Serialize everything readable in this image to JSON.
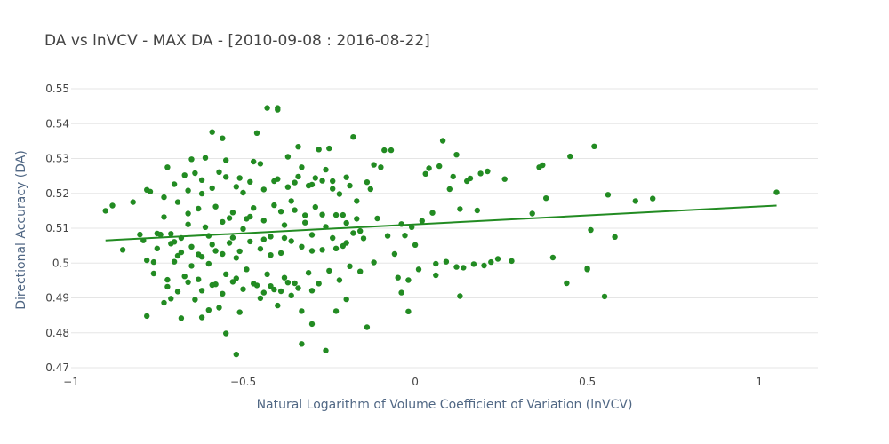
{
  "chart_data": {
    "type": "scatter",
    "title": "DA vs lnVCV - MAX DA - [2010-09-08 : 2016-08-22]",
    "xlabel": "Natural Logarithm of Volume Coefficient of Variation (lnVCV)",
    "ylabel": "Directional Accuracy (DA)",
    "xlim": [
      -1.0,
      1.17
    ],
    "ylim": [
      0.47,
      0.55
    ],
    "x_ticks": [
      {
        "value": -1,
        "label": "−1"
      },
      {
        "value": -0.5,
        "label": "−0.5"
      },
      {
        "value": 0,
        "label": "0"
      },
      {
        "value": 0.5,
        "label": "0.5"
      },
      {
        "value": 1,
        "label": "1"
      }
    ],
    "y_ticks": [
      {
        "value": 0.47,
        "label": "0.47"
      },
      {
        "value": 0.48,
        "label": "0.48"
      },
      {
        "value": 0.49,
        "label": "0.49"
      },
      {
        "value": 0.5,
        "label": "0.5"
      },
      {
        "value": 0.51,
        "label": "0.51"
      },
      {
        "value": 0.52,
        "label": "0.52"
      },
      {
        "value": 0.53,
        "label": "0.53"
      },
      {
        "value": 0.54,
        "label": "0.54"
      },
      {
        "value": 0.55,
        "label": "0.55"
      }
    ],
    "grid": "y",
    "colors": {
      "marker": "#228b22",
      "trend": "#228b22",
      "grid": "#e5e5e5",
      "zero_line": "#444444"
    },
    "trendline": {
      "x": [
        -0.9,
        1.05
      ],
      "y": [
        0.5065,
        0.5165
      ]
    },
    "points": [
      [
        -0.9,
        0.515
      ],
      [
        -0.88,
        0.5165
      ],
      [
        -0.85,
        0.5038
      ],
      [
        -0.82,
        0.5175
      ],
      [
        -0.8,
        0.5082
      ],
      [
        -0.79,
        0.5065
      ],
      [
        -0.78,
        0.521
      ],
      [
        -0.77,
        0.5205
      ],
      [
        -0.78,
        0.5008
      ],
      [
        -0.76,
        0.497
      ],
      [
        -0.75,
        0.5085
      ],
      [
        -0.74,
        0.5082
      ],
      [
        -0.73,
        0.5189
      ],
      [
        -0.72,
        0.5275
      ],
      [
        -0.71,
        0.5084
      ],
      [
        -0.7,
        0.5061
      ],
      [
        -0.69,
        0.5021
      ],
      [
        -0.68,
        0.5072
      ],
      [
        -0.67,
        0.5252
      ],
      [
        -0.66,
        0.5142
      ],
      [
        -0.65,
        0.5298
      ],
      [
        -0.64,
        0.5258
      ],
      [
        -0.63,
        0.5025
      ],
      [
        -0.62,
        0.5199
      ],
      [
        -0.61,
        0.5302
      ],
      [
        -0.6,
        0.5078
      ],
      [
        -0.59,
        0.5376
      ],
      [
        -0.58,
        0.5035
      ],
      [
        -0.57,
        0.5261
      ],
      [
        -0.56,
        0.5358
      ],
      [
        -0.55,
        0.5295
      ],
      [
        -0.54,
        0.5129
      ],
      [
        -0.53,
        0.5073
      ],
      [
        -0.52,
        0.5015
      ],
      [
        -0.51,
        0.5244
      ],
      [
        -0.5,
        0.5202
      ],
      [
        -0.49,
        0.5127
      ],
      [
        -0.48,
        0.5133
      ],
      [
        -0.47,
        0.5291
      ],
      [
        -0.46,
        0.5373
      ],
      [
        -0.45,
        0.5285
      ],
      [
        -0.44,
        0.5068
      ],
      [
        -0.43,
        0.5445
      ],
      [
        -0.42,
        0.5023
      ],
      [
        -0.41,
        0.5235
      ],
      [
        -0.4,
        0.5445
      ],
      [
        -0.4,
        0.544
      ],
      [
        -0.39,
        0.5148
      ],
      [
        -0.38,
        0.5072
      ],
      [
        -0.37,
        0.5305
      ],
      [
        -0.36,
        0.5178
      ],
      [
        -0.35,
        0.5231
      ],
      [
        -0.34,
        0.5334
      ],
      [
        -0.33,
        0.5275
      ],
      [
        -0.32,
        0.5137
      ],
      [
        -0.31,
        0.5222
      ],
      [
        -0.3,
        0.5035
      ],
      [
        -0.29,
        0.5244
      ],
      [
        -0.28,
        0.5326
      ],
      [
        -0.27,
        0.5139
      ],
      [
        -0.26,
        0.5268
      ],
      [
        -0.25,
        0.5329
      ],
      [
        -0.24,
        0.5235
      ],
      [
        -0.23,
        0.5042
      ],
      [
        -0.22,
        0.5198
      ],
      [
        -0.21,
        0.5138
      ],
      [
        -0.2,
        0.5058
      ],
      [
        -0.19,
        0.5222
      ],
      [
        -0.18,
        0.5362
      ],
      [
        -0.17,
        0.5178
      ],
      [
        -0.16,
        0.5092
      ],
      [
        -0.15,
        0.5071
      ],
      [
        -0.14,
        0.5232
      ],
      [
        -0.13,
        0.5212
      ],
      [
        -0.12,
        0.5282
      ],
      [
        -0.11,
        0.5128
      ],
      [
        -0.1,
        0.5275
      ],
      [
        -0.09,
        0.5324
      ],
      [
        -0.08,
        0.5078
      ],
      [
        -0.07,
        0.5324
      ],
      [
        -0.06,
        0.5026
      ],
      [
        -0.05,
        0.4958
      ],
      [
        -0.04,
        0.5112
      ],
      [
        -0.03,
        0.5079
      ],
      [
        -0.02,
        0.4951
      ],
      [
        -0.01,
        0.5103
      ],
      [
        0.0,
        0.5052
      ],
      [
        0.02,
        0.5121
      ],
      [
        0.03,
        0.5256
      ],
      [
        0.04,
        0.5272
      ],
      [
        0.05,
        0.5144
      ],
      [
        0.06,
        0.4998
      ],
      [
        0.07,
        0.5278
      ],
      [
        0.08,
        0.5351
      ],
      [
        0.1,
        0.5212
      ],
      [
        0.11,
        0.5248
      ],
      [
        0.12,
        0.5311
      ],
      [
        0.13,
        0.5155
      ],
      [
        0.14,
        0.4987
      ],
      [
        0.15,
        0.5235
      ],
      [
        0.16,
        0.5243
      ],
      [
        0.18,
        0.5151
      ],
      [
        0.19,
        0.5257
      ],
      [
        0.21,
        0.5263
      ],
      [
        0.22,
        0.5003
      ],
      [
        0.24,
        0.5012
      ],
      [
        0.26,
        0.5241
      ],
      [
        0.28,
        0.5006
      ],
      [
        0.34,
        0.5142
      ],
      [
        0.36,
        0.5275
      ],
      [
        0.37,
        0.5281
      ],
      [
        0.38,
        0.5186
      ],
      [
        0.4,
        0.5016
      ],
      [
        0.44,
        0.4942
      ],
      [
        0.45,
        0.5306
      ],
      [
        0.5,
        0.4985
      ],
      [
        0.51,
        0.5095
      ],
      [
        0.52,
        0.5335
      ],
      [
        0.56,
        0.5196
      ],
      [
        0.58,
        0.5075
      ],
      [
        0.64,
        0.5178
      ],
      [
        0.69,
        0.5185
      ],
      [
        1.05,
        0.5203
      ],
      [
        -0.78,
        0.4848
      ],
      [
        -0.73,
        0.4886
      ],
      [
        -0.71,
        0.4898
      ],
      [
        -0.68,
        0.4842
      ],
      [
        -0.64,
        0.4895
      ],
      [
        -0.62,
        0.4844
      ],
      [
        -0.6,
        0.4865
      ],
      [
        -0.57,
        0.4872
      ],
      [
        -0.55,
        0.4798
      ],
      [
        -0.52,
        0.4738
      ],
      [
        -0.51,
        0.4859
      ],
      [
        -0.45,
        0.4899
      ],
      [
        -0.4,
        0.4878
      ],
      [
        -0.36,
        0.4907
      ],
      [
        -0.33,
        0.4862
      ],
      [
        -0.33,
        0.4768
      ],
      [
        -0.3,
        0.4825
      ],
      [
        -0.26,
        0.4749
      ],
      [
        -0.23,
        0.4862
      ],
      [
        -0.2,
        0.4896
      ],
      [
        -0.14,
        0.4816
      ],
      [
        -0.04,
        0.4915
      ],
      [
        -0.02,
        0.4861
      ],
      [
        0.13,
        0.4905
      ],
      [
        0.55,
        0.4904
      ],
      [
        -0.76,
        0.5003
      ],
      [
        -0.72,
        0.4952
      ],
      [
        -0.7,
        0.5004
      ],
      [
        -0.67,
        0.4962
      ],
      [
        -0.65,
        0.4992
      ],
      [
        -0.63,
        0.4953
      ],
      [
        -0.6,
        0.4998
      ],
      [
        -0.58,
        0.4939
      ],
      [
        -0.55,
        0.4968
      ],
      [
        -0.52,
        0.4956
      ],
      [
        -0.49,
        0.4982
      ],
      [
        -0.46,
        0.4936
      ],
      [
        -0.43,
        0.4968
      ],
      [
        -0.41,
        0.4924
      ],
      [
        -0.38,
        0.4958
      ],
      [
        -0.35,
        0.4942
      ],
      [
        -0.31,
        0.4972
      ],
      [
        -0.28,
        0.4941
      ],
      [
        -0.25,
        0.4978
      ],
      [
        -0.22,
        0.4951
      ],
      [
        -0.19,
        0.4991
      ],
      [
        -0.16,
        0.4976
      ],
      [
        -0.12,
        0.5002
      ],
      [
        0.01,
        0.4982
      ],
      [
        0.06,
        0.4965
      ],
      [
        0.09,
        0.5004
      ],
      [
        0.12,
        0.4989
      ],
      [
        0.17,
        0.4997
      ],
      [
        0.2,
        0.4993
      ],
      [
        0.5,
        0.4982
      ],
      [
        -0.73,
        0.5132
      ],
      [
        -0.69,
        0.5175
      ],
      [
        -0.66,
        0.5111
      ],
      [
        -0.63,
        0.5156
      ],
      [
        -0.61,
        0.5103
      ],
      [
        -0.58,
        0.5162
      ],
      [
        -0.56,
        0.5118
      ],
      [
        -0.53,
        0.5145
      ],
      [
        -0.5,
        0.5098
      ],
      [
        -0.47,
        0.5158
      ],
      [
        -0.44,
        0.5122
      ],
      [
        -0.41,
        0.5166
      ],
      [
        -0.38,
        0.5109
      ],
      [
        -0.35,
        0.5152
      ],
      [
        -0.32,
        0.5116
      ],
      [
        -0.29,
        0.5161
      ],
      [
        -0.26,
        0.5104
      ],
      [
        -0.23,
        0.5138
      ],
      [
        -0.2,
        0.5115
      ],
      [
        -0.17,
        0.5127
      ],
      [
        -0.75,
        0.5042
      ],
      [
        -0.71,
        0.5056
      ],
      [
        -0.68,
        0.5031
      ],
      [
        -0.65,
        0.5047
      ],
      [
        -0.62,
        0.5018
      ],
      [
        -0.59,
        0.5053
      ],
      [
        -0.56,
        0.5026
      ],
      [
        -0.54,
        0.5058
      ],
      [
        -0.51,
        0.5034
      ],
      [
        -0.48,
        0.5062
      ],
      [
        -0.45,
        0.5041
      ],
      [
        -0.42,
        0.5076
      ],
      [
        -0.39,
        0.5029
      ],
      [
        -0.36,
        0.5063
      ],
      [
        -0.33,
        0.5047
      ],
      [
        -0.3,
        0.5081
      ],
      [
        -0.27,
        0.5038
      ],
      [
        -0.24,
        0.5072
      ],
      [
        -0.21,
        0.5049
      ],
      [
        -0.18,
        0.5086
      ],
      [
        -0.7,
        0.5226
      ],
      [
        -0.66,
        0.5208
      ],
      [
        -0.62,
        0.5238
      ],
      [
        -0.59,
        0.5215
      ],
      [
        -0.55,
        0.5247
      ],
      [
        -0.52,
        0.5219
      ],
      [
        -0.48,
        0.5233
      ],
      [
        -0.44,
        0.5211
      ],
      [
        -0.4,
        0.5241
      ],
      [
        -0.37,
        0.5218
      ],
      [
        -0.34,
        0.5248
      ],
      [
        -0.3,
        0.5225
      ],
      [
        -0.27,
        0.5236
      ],
      [
        -0.24,
        0.5213
      ],
      [
        -0.2,
        0.5246
      ],
      [
        -0.72,
        0.4932
      ],
      [
        -0.69,
        0.4918
      ],
      [
        -0.66,
        0.4945
      ],
      [
        -0.62,
        0.4921
      ],
      [
        -0.59,
        0.4937
      ],
      [
        -0.56,
        0.4912
      ],
      [
        -0.53,
        0.4946
      ],
      [
        -0.5,
        0.4925
      ],
      [
        -0.47,
        0.4941
      ],
      [
        -0.44,
        0.4915
      ],
      [
        -0.42,
        0.4934
      ],
      [
        -0.39,
        0.4919
      ],
      [
        -0.37,
        0.4944
      ],
      [
        -0.34,
        0.4928
      ],
      [
        -0.3,
        0.4921
      ]
    ]
  }
}
